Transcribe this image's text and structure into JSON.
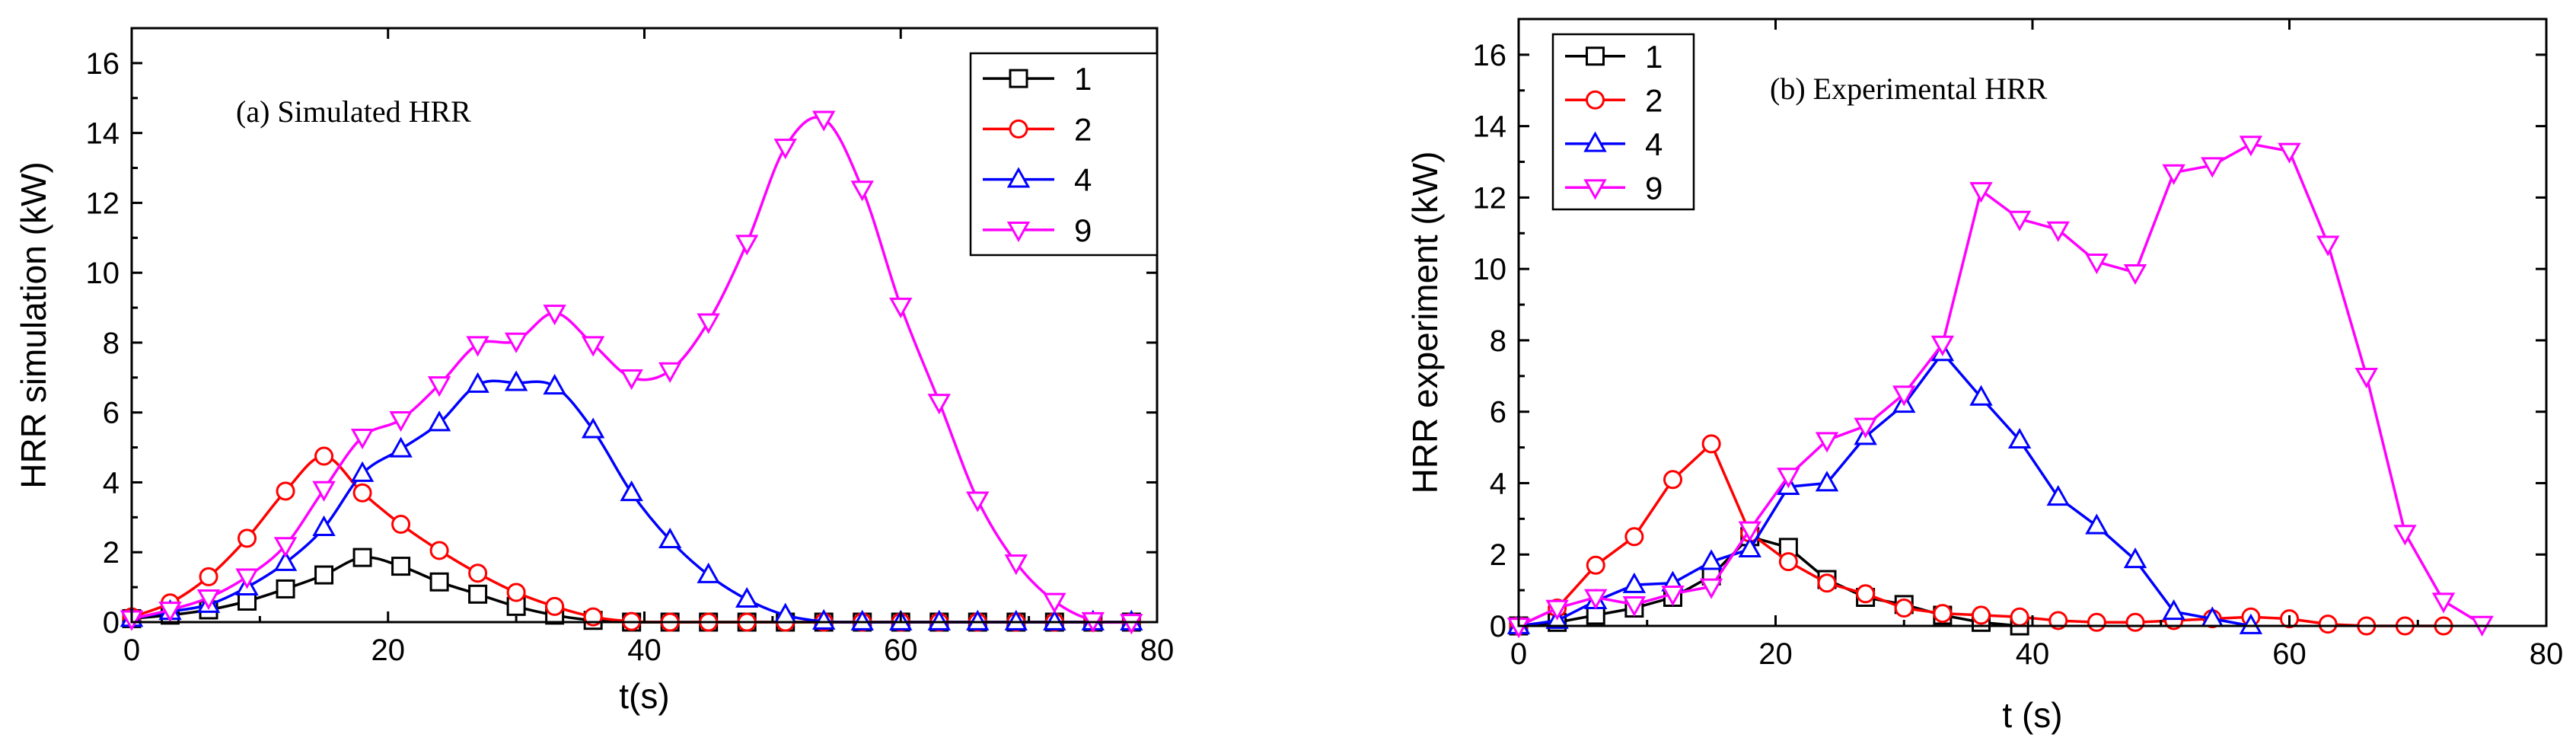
{
  "chart_data": [
    {
      "type": "line",
      "title": "Simulated HRR",
      "annotation": "(a)  Simulated HRR",
      "xlabel": "t(s)",
      "ylabel": "HRR simulation (kW)",
      "xlim": [
        0,
        80
      ],
      "ylim": [
        0,
        17
      ],
      "xticks": [
        0,
        20,
        40,
        60,
        80
      ],
      "yticks": [
        0,
        2,
        4,
        6,
        8,
        10,
        12,
        14,
        16
      ],
      "legend_position": "top-right",
      "series": [
        {
          "name": "1",
          "color": "#000000",
          "marker": "square",
          "x": [
            0,
            3,
            6,
            9,
            12,
            15,
            18,
            21,
            24,
            27,
            30,
            33,
            36,
            39,
            42,
            45,
            48,
            51,
            54,
            57,
            60,
            63,
            66,
            69,
            72,
            75,
            78
          ],
          "y": [
            0.1,
            0.2,
            0.35,
            0.6,
            0.95,
            1.35,
            1.85,
            1.6,
            1.15,
            0.8,
            0.45,
            0.2,
            0.05,
            0,
            0,
            0,
            0,
            0,
            0,
            0,
            0,
            0,
            0,
            0,
            0,
            0,
            0
          ]
        },
        {
          "name": "2",
          "color": "#ff0000",
          "marker": "circle",
          "x": [
            0,
            3,
            6,
            9,
            12,
            15,
            18,
            21,
            24,
            27,
            30,
            33,
            36,
            39,
            42,
            45,
            48,
            51,
            54,
            57,
            60,
            63,
            66,
            69,
            72,
            75,
            78
          ],
          "y": [
            0.15,
            0.55,
            1.3,
            2.4,
            3.75,
            4.75,
            3.7,
            2.8,
            2.05,
            1.4,
            0.85,
            0.45,
            0.15,
            0.02,
            0,
            0,
            0,
            0,
            0,
            0,
            0,
            0,
            0,
            0,
            0,
            0,
            0
          ]
        },
        {
          "name": "4",
          "color": "#0000ff",
          "marker": "triangle-up",
          "x": [
            0,
            3,
            6,
            9,
            12,
            15,
            18,
            21,
            24,
            27,
            30,
            33,
            36,
            39,
            42,
            45,
            48,
            51,
            54,
            57,
            60,
            63,
            66,
            69,
            72,
            75,
            78
          ],
          "y": [
            0.1,
            0.3,
            0.5,
            1.0,
            1.7,
            2.7,
            4.25,
            4.95,
            5.7,
            6.8,
            6.85,
            6.75,
            5.5,
            3.7,
            2.35,
            1.35,
            0.65,
            0.2,
            0.02,
            0,
            0,
            0,
            0,
            0,
            0,
            0,
            0
          ]
        },
        {
          "name": "9",
          "color": "#ff00ff",
          "marker": "triangle-down",
          "x": [
            0,
            3,
            6,
            9,
            12,
            15,
            18,
            21,
            24,
            27,
            30,
            33,
            36,
            39,
            42,
            45,
            48,
            51,
            54,
            57,
            60,
            63,
            66,
            69,
            72,
            75,
            78
          ],
          "y": [
            0.1,
            0.35,
            0.7,
            1.3,
            2.2,
            3.8,
            5.3,
            5.8,
            6.8,
            7.95,
            8.05,
            8.85,
            7.95,
            7.0,
            7.2,
            8.6,
            10.85,
            13.6,
            14.4,
            12.4,
            9.05,
            6.3,
            3.5,
            1.7,
            0.6,
            0.05,
            0
          ]
        }
      ]
    },
    {
      "type": "line",
      "title": "Experimental HRR",
      "annotation": "(b)  Experimental HRR",
      "xlabel": "t (s)",
      "ylabel": "HRR experiment (kW)",
      "xlim": [
        0,
        80
      ],
      "ylim": [
        0,
        17
      ],
      "xticks": [
        0,
        20,
        40,
        60,
        80
      ],
      "yticks": [
        0,
        2,
        4,
        6,
        8,
        10,
        12,
        14,
        16
      ],
      "legend_position": "top-left",
      "series": [
        {
          "name": "1",
          "color": "#000000",
          "marker": "square",
          "x": [
            0,
            3,
            6,
            9,
            12,
            15,
            18,
            21,
            24,
            27,
            30,
            33,
            36,
            39
          ],
          "y": [
            0,
            0.1,
            0.3,
            0.5,
            0.8,
            1.4,
            2.5,
            2.2,
            1.3,
            0.8,
            0.6,
            0.3,
            0.1,
            0
          ]
        },
        {
          "name": "2",
          "color": "#ff0000",
          "marker": "circle",
          "x": [
            0,
            3,
            6,
            9,
            12,
            15,
            18,
            21,
            24,
            27,
            30,
            33,
            36,
            39,
            42,
            45,
            48,
            51,
            54,
            57,
            60,
            63,
            66,
            69,
            72
          ],
          "y": [
            0,
            0.5,
            1.7,
            2.5,
            4.1,
            5.1,
            2.6,
            1.8,
            1.2,
            0.9,
            0.5,
            0.35,
            0.3,
            0.25,
            0.15,
            0.1,
            0.1,
            0.15,
            0.2,
            0.25,
            0.2,
            0.05,
            0,
            0,
            0
          ]
        },
        {
          "name": "4",
          "color": "#0000ff",
          "marker": "triangle-up",
          "x": [
            0,
            3,
            6,
            9,
            12,
            15,
            18,
            21,
            24,
            27,
            30,
            33,
            36,
            39,
            42,
            45,
            48,
            51,
            54,
            57
          ],
          "y": [
            0,
            0.15,
            0.7,
            1.15,
            1.2,
            1.8,
            2.15,
            3.9,
            4.0,
            5.3,
            6.2,
            7.65,
            6.4,
            5.2,
            3.6,
            2.8,
            1.85,
            0.4,
            0.2,
            0
          ]
        },
        {
          "name": "9",
          "color": "#ff00ff",
          "marker": "triangle-down",
          "x": [
            0,
            3,
            6,
            9,
            12,
            15,
            18,
            21,
            24,
            27,
            30,
            33,
            36,
            39,
            42,
            45,
            48,
            51,
            54,
            57,
            60,
            63,
            66,
            69,
            72,
            75
          ],
          "y": [
            0,
            0.5,
            0.8,
            0.6,
            0.9,
            1.1,
            2.7,
            4.2,
            5.2,
            5.6,
            6.5,
            7.9,
            12.2,
            11.4,
            11.1,
            10.2,
            9.9,
            12.7,
            12.9,
            13.5,
            13.3,
            10.7,
            7.0,
            2.6,
            0.7,
            0.05
          ]
        }
      ]
    }
  ]
}
